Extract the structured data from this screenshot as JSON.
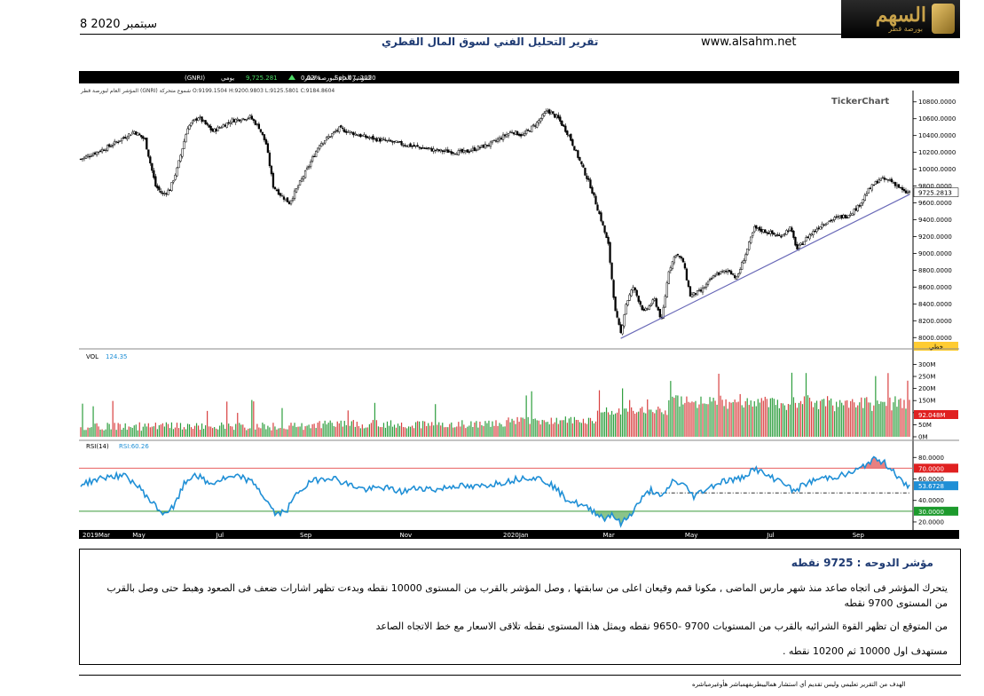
{
  "header": {
    "date": "8 سبتمبر 2020",
    "title": "تقرير التحليل الفني لسوق المال القطري",
    "website": "www.alsahm.net",
    "logo_text": "السهم",
    "logo_sub": "بورصة قطر"
  },
  "chart_data": {
    "type": "candlestick",
    "toolbar": {
      "name": "المؤشر العام لبورصة قطر",
      "symbol": "(GNRI)",
      "period": "يومي",
      "last": "9,725.281",
      "change_pct": "0.02%",
      "date": "Sep 07, 2020",
      "ohlc_line": "المؤشر العام لبورصة قطر (GNRI) شموع متحركة O:9199.1504 H:9200.9803 L:9125.5801 C:9184.8604"
    },
    "watermark": "TickerChart",
    "price_axis": {
      "ylim": [
        7950,
        10850
      ],
      "ticks": [
        "10800.0000",
        "10600.0000",
        "10400.0000",
        "10200.0000",
        "10000.0000",
        "9800.0000",
        "9600.0000",
        "9400.0000",
        "9200.0000",
        "9000.0000",
        "8800.0000",
        "8600.0000",
        "8400.0000",
        "8200.0000",
        "8000.0000"
      ],
      "last_label": "9725.2813",
      "bottom_tag": "خطي"
    },
    "close_keypoints": [
      {
        "x": 0,
        "y": 10120
      },
      {
        "x": 15,
        "y": 10260
      },
      {
        "x": 30,
        "y": 10450
      },
      {
        "x": 36,
        "y": 10350
      },
      {
        "x": 42,
        "y": 9800
      },
      {
        "x": 46,
        "y": 9700
      },
      {
        "x": 50,
        "y": 9760
      },
      {
        "x": 54,
        "y": 10000
      },
      {
        "x": 60,
        "y": 10500
      },
      {
        "x": 66,
        "y": 10620
      },
      {
        "x": 74,
        "y": 10450
      },
      {
        "x": 85,
        "y": 10580
      },
      {
        "x": 95,
        "y": 10620
      },
      {
        "x": 100,
        "y": 10500
      },
      {
        "x": 104,
        "y": 10300
      },
      {
        "x": 108,
        "y": 9800
      },
      {
        "x": 112,
        "y": 9700
      },
      {
        "x": 117,
        "y": 9600
      },
      {
        "x": 122,
        "y": 9800
      },
      {
        "x": 127,
        "y": 10000
      },
      {
        "x": 134,
        "y": 10300
      },
      {
        "x": 145,
        "y": 10480
      },
      {
        "x": 160,
        "y": 10380
      },
      {
        "x": 180,
        "y": 10300
      },
      {
        "x": 200,
        "y": 10220
      },
      {
        "x": 215,
        "y": 10200
      },
      {
        "x": 230,
        "y": 10300
      },
      {
        "x": 242,
        "y": 10450
      },
      {
        "x": 248,
        "y": 10400
      },
      {
        "x": 256,
        "y": 10550
      },
      {
        "x": 262,
        "y": 10700
      },
      {
        "x": 268,
        "y": 10600
      },
      {
        "x": 274,
        "y": 10400
      },
      {
        "x": 280,
        "y": 10100
      },
      {
        "x": 286,
        "y": 9800
      },
      {
        "x": 292,
        "y": 9400
      },
      {
        "x": 296,
        "y": 9100
      },
      {
        "x": 300,
        "y": 8300
      },
      {
        "x": 303,
        "y": 8050
      },
      {
        "x": 306,
        "y": 8400
      },
      {
        "x": 310,
        "y": 8600
      },
      {
        "x": 316,
        "y": 8300
      },
      {
        "x": 322,
        "y": 8450
      },
      {
        "x": 326,
        "y": 8200
      },
      {
        "x": 330,
        "y": 8800
      },
      {
        "x": 334,
        "y": 9000
      },
      {
        "x": 338,
        "y": 8900
      },
      {
        "x": 342,
        "y": 8500
      },
      {
        "x": 348,
        "y": 8550
      },
      {
        "x": 356,
        "y": 8750
      },
      {
        "x": 364,
        "y": 8800
      },
      {
        "x": 368,
        "y": 8700
      },
      {
        "x": 374,
        "y": 9050
      },
      {
        "x": 378,
        "y": 9300
      },
      {
        "x": 386,
        "y": 9250
      },
      {
        "x": 392,
        "y": 9200
      },
      {
        "x": 398,
        "y": 9300
      },
      {
        "x": 402,
        "y": 9050
      },
      {
        "x": 408,
        "y": 9200
      },
      {
        "x": 416,
        "y": 9350
      },
      {
        "x": 424,
        "y": 9420
      },
      {
        "x": 430,
        "y": 9450
      },
      {
        "x": 436,
        "y": 9550
      },
      {
        "x": 442,
        "y": 9750
      },
      {
        "x": 448,
        "y": 9880
      },
      {
        "x": 454,
        "y": 9870
      },
      {
        "x": 458,
        "y": 9810
      },
      {
        "x": 462,
        "y": 9725
      }
    ],
    "trendline": [
      {
        "x": 303,
        "y": 7990
      },
      {
        "x": 465,
        "y": 9700
      }
    ],
    "volume": {
      "label": "VOL",
      "value": "124.35",
      "ylim": [
        0,
        320
      ],
      "ticks": [
        "300M",
        "250M",
        "200M",
        "150M",
        "100M",
        "50M",
        "0M"
      ],
      "last_label": "92.048M"
    },
    "rsi": {
      "label": "RSI(14)",
      "value_label": "RSI:60.26",
      "ylim": [
        15,
        86
      ],
      "ticks": [
        "80.0000",
        "60.0000",
        "40.0000",
        "20.0000"
      ],
      "overbought_label": "70.0000",
      "current_label": "53.6728",
      "oversold_label": "30.0000",
      "overbought": 70,
      "oversold": 30,
      "keypoints": [
        {
          "x": 0,
          "y": 55
        },
        {
          "x": 10,
          "y": 60
        },
        {
          "x": 18,
          "y": 63
        },
        {
          "x": 26,
          "y": 62
        },
        {
          "x": 34,
          "y": 50
        },
        {
          "x": 40,
          "y": 38
        },
        {
          "x": 46,
          "y": 28
        },
        {
          "x": 52,
          "y": 33
        },
        {
          "x": 58,
          "y": 55
        },
        {
          "x": 64,
          "y": 65
        },
        {
          "x": 72,
          "y": 55
        },
        {
          "x": 80,
          "y": 60
        },
        {
          "x": 90,
          "y": 62
        },
        {
          "x": 98,
          "y": 55
        },
        {
          "x": 104,
          "y": 40
        },
        {
          "x": 110,
          "y": 26
        },
        {
          "x": 116,
          "y": 32
        },
        {
          "x": 122,
          "y": 48
        },
        {
          "x": 130,
          "y": 58
        },
        {
          "x": 140,
          "y": 62
        },
        {
          "x": 150,
          "y": 55
        },
        {
          "x": 160,
          "y": 50
        },
        {
          "x": 170,
          "y": 52
        },
        {
          "x": 180,
          "y": 48
        },
        {
          "x": 190,
          "y": 52
        },
        {
          "x": 200,
          "y": 50
        },
        {
          "x": 210,
          "y": 54
        },
        {
          "x": 220,
          "y": 52
        },
        {
          "x": 230,
          "y": 55
        },
        {
          "x": 240,
          "y": 58
        },
        {
          "x": 250,
          "y": 62
        },
        {
          "x": 258,
          "y": 60
        },
        {
          "x": 264,
          "y": 55
        },
        {
          "x": 272,
          "y": 42
        },
        {
          "x": 280,
          "y": 36
        },
        {
          "x": 288,
          "y": 30
        },
        {
          "x": 294,
          "y": 23
        },
        {
          "x": 298,
          "y": 28
        },
        {
          "x": 303,
          "y": 18
        },
        {
          "x": 308,
          "y": 26
        },
        {
          "x": 314,
          "y": 40
        },
        {
          "x": 320,
          "y": 50
        },
        {
          "x": 326,
          "y": 42
        },
        {
          "x": 332,
          "y": 58
        },
        {
          "x": 338,
          "y": 55
        },
        {
          "x": 344,
          "y": 44
        },
        {
          "x": 350,
          "y": 50
        },
        {
          "x": 360,
          "y": 58
        },
        {
          "x": 370,
          "y": 60
        },
        {
          "x": 378,
          "y": 70
        },
        {
          "x": 386,
          "y": 62
        },
        {
          "x": 394,
          "y": 58
        },
        {
          "x": 400,
          "y": 48
        },
        {
          "x": 406,
          "y": 55
        },
        {
          "x": 414,
          "y": 60
        },
        {
          "x": 422,
          "y": 62
        },
        {
          "x": 430,
          "y": 64
        },
        {
          "x": 438,
          "y": 70
        },
        {
          "x": 444,
          "y": 78
        },
        {
          "x": 450,
          "y": 76
        },
        {
          "x": 456,
          "y": 68
        },
        {
          "x": 462,
          "y": 54
        }
      ],
      "dashed_support": [
        {
          "x": 318,
          "y": 47
        },
        {
          "x": 465,
          "y": 47
        }
      ]
    },
    "x_axis": {
      "n": 466,
      "labels": [
        {
          "x": 0,
          "label": "2019Mar"
        },
        {
          "x": 28,
          "label": "May"
        },
        {
          "x": 75,
          "label": "Jul"
        },
        {
          "x": 122,
          "label": "Sep"
        },
        {
          "x": 178,
          "label": "Nov"
        },
        {
          "x": 236,
          "label": "2020Jan"
        },
        {
          "x": 292,
          "label": "Mar"
        },
        {
          "x": 338,
          "label": "May"
        },
        {
          "x": 384,
          "label": "Jul"
        },
        {
          "x": 432,
          "label": "Sep"
        }
      ]
    },
    "colors": {
      "up": "#000000",
      "down": "#000000",
      "vol_up": "#2e9e3e",
      "vol_down": "#d84040",
      "rsi": "#1f8fd6",
      "trend": "#6a6ab8",
      "ob_line": "#e86060",
      "os_line": "#3a9a3a"
    }
  },
  "analysis": {
    "heading": "مؤشر الدوحه : 9725 نقطه",
    "paragraph1": "يتحرك المؤشر فى اتجاه صاعد منذ شهر مارس الماضى , مكونا قمم وقيعان اعلى من سابقتها , وصل المؤشر بالقرب من المستوى 10000 نقطه وبدءت تظهر اشارات ضعف فى الصعود وهبط حتى وصل بالقرب من المستوى 9700 نقطه",
    "paragraph2": "من المتوقع ان تظهر القوة الشرائيه بالقرب من المستويات 9700 -9650 نقطه ويمثل هذا المستوى نقطه تلاقى الاسعار مع خط الاتجاه الصاعد",
    "paragraph3": "مستهدف اول 10000 ثم 10200 نقطه ."
  },
  "footer": {
    "note": "الهدف من التقرير تعليمي وليس تقديم أي استشار همالييطربفهمباشر هأوغيرمباشره"
  }
}
